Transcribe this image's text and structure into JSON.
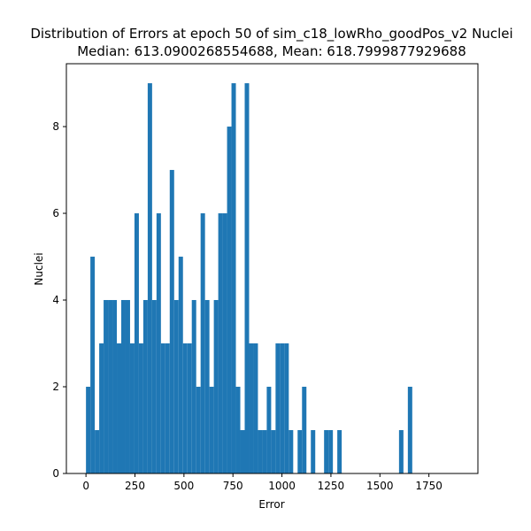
{
  "chart_data": {
    "type": "bar",
    "title": "Distribution of Errors at epoch 50 of sim_c18_lowRho_goodPos_v2 Nuclei",
    "subtitle": "Median: 613.0900268554688, Mean: 618.7999877929688",
    "xlabel": "Error",
    "ylabel": "Nuclei",
    "xlim": [
      -100,
      2000
    ],
    "ylim": [
      0,
      9.45
    ],
    "xticks": [
      0,
      250,
      500,
      750,
      1000,
      1250,
      1500,
      1750
    ],
    "yticks": [
      0,
      2,
      4,
      6,
      8
    ],
    "bin_width": 22.5,
    "bin_start": 0,
    "values": [
      2,
      5,
      1,
      3,
      4,
      4,
      4,
      3,
      4,
      4,
      3,
      6,
      3,
      4,
      9,
      4,
      6,
      3,
      3,
      7,
      4,
      5,
      3,
      3,
      4,
      2,
      6,
      4,
      2,
      4,
      6,
      6,
      8,
      9,
      2,
      1,
      9,
      3,
      3,
      1,
      1,
      2,
      1,
      3,
      3,
      3,
      1,
      0,
      1,
      2,
      0,
      1,
      0,
      0,
      1,
      1,
      0,
      1,
      0,
      0,
      0,
      0,
      0,
      0,
      0,
      0,
      0,
      0,
      0,
      0,
      0,
      0,
      0,
      0,
      0,
      0,
      0,
      0,
      0,
      0
    ],
    "tail_bins": [
      {
        "x": 1597.5,
        "value": 1
      },
      {
        "x": 1642.5,
        "value": 2
      }
    ],
    "color": "#1f77b4",
    "grid": false
  }
}
